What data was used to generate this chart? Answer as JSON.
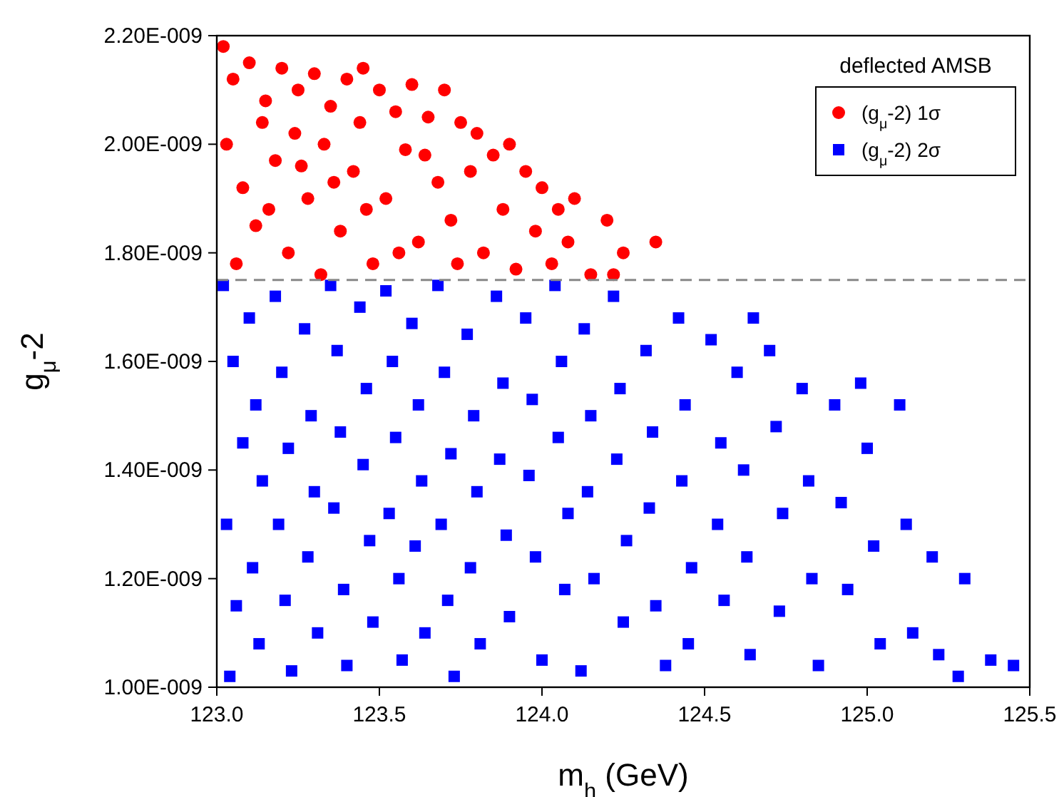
{
  "chart_data": {
    "type": "scatter",
    "xlabel": "m$_{h}$ (GeV)",
    "ylabel": "g$_{μ}$-2",
    "legend_title": "deflected AMSB",
    "xlim": [
      123.0,
      125.5
    ],
    "xticks": [
      {
        "value": 123.0,
        "label": "123.0"
      },
      {
        "value": 123.5,
        "label": "123.5"
      },
      {
        "value": 124.0,
        "label": "124.0"
      },
      {
        "value": 124.5,
        "label": "124.5"
      },
      {
        "value": 125.0,
        "label": "125.0"
      },
      {
        "value": 125.5,
        "label": "125.5"
      }
    ],
    "ylim": [
      1e-09,
      2.2e-09
    ],
    "yticks": [
      {
        "value": 1e-09,
        "label": "1.00E-009"
      },
      {
        "value": 1.2e-09,
        "label": "1.20E-009"
      },
      {
        "value": 1.4e-09,
        "label": "1.40E-009"
      },
      {
        "value": 1.6e-09,
        "label": "1.60E-009"
      },
      {
        "value": 1.8e-09,
        "label": "1.80E-009"
      },
      {
        "value": 2e-09,
        "label": "2.00E-009"
      },
      {
        "value": 2.2e-09,
        "label": "2.20E-009"
      }
    ],
    "legend": "top right",
    "grid": false,
    "ref_lines": [
      {
        "axis": "y",
        "value": 1.75e-09,
        "color": "#888888",
        "line_style": "dashed"
      }
    ],
    "series": [
      {
        "name": "(g$_{μ}$-2) 1σ",
        "color": "#ff0000",
        "marker": "circle",
        "x": [
          123.02,
          123.05,
          123.1,
          123.15,
          123.2,
          123.25,
          123.3,
          123.35,
          123.4,
          123.45,
          123.5,
          123.55,
          123.6,
          123.65,
          123.7,
          123.75,
          123.8,
          123.85,
          123.9,
          123.95,
          124.0,
          124.05,
          124.1,
          124.2,
          124.35,
          124.25,
          123.03,
          123.08,
          123.12,
          123.18,
          123.22,
          123.28,
          123.33,
          123.38,
          123.42,
          123.48,
          123.52,
          123.58,
          123.62,
          123.68,
          123.72,
          123.78,
          123.82,
          123.88,
          123.92,
          123.98,
          124.03,
          124.08,
          124.15,
          124.22,
          123.06,
          123.14,
          123.24,
          123.32,
          123.44,
          123.56,
          123.64,
          123.74,
          123.16,
          123.46,
          123.26,
          123.36
        ],
        "values": [
          2.18e-09,
          2.12e-09,
          2.15e-09,
          2.08e-09,
          2.14e-09,
          2.1e-09,
          2.13e-09,
          2.07e-09,
          2.12e-09,
          2.14e-09,
          2.1e-09,
          2.06e-09,
          2.11e-09,
          2.05e-09,
          2.1e-09,
          2.04e-09,
          2.02e-09,
          1.98e-09,
          2e-09,
          1.95e-09,
          1.92e-09,
          1.88e-09,
          1.9e-09,
          1.86e-09,
          1.82e-09,
          1.8e-09,
          2e-09,
          1.92e-09,
          1.85e-09,
          1.97e-09,
          1.8e-09,
          1.9e-09,
          2e-09,
          1.84e-09,
          1.95e-09,
          1.78e-09,
          1.9e-09,
          1.99e-09,
          1.82e-09,
          1.93e-09,
          1.86e-09,
          1.95e-09,
          1.8e-09,
          1.88e-09,
          1.77e-09,
          1.84e-09,
          1.78e-09,
          1.82e-09,
          1.76e-09,
          1.76e-09,
          1.78e-09,
          2.04e-09,
          2.02e-09,
          1.76e-09,
          2.04e-09,
          1.8e-09,
          1.98e-09,
          1.78e-09,
          1.88e-09,
          1.88e-09,
          1.96e-09,
          1.93e-09
        ]
      },
      {
        "name": "(g$_{μ}$-2) 2σ",
        "color": "#0000ff",
        "marker": "square",
        "x": [
          123.02,
          123.05,
          123.08,
          123.03,
          123.06,
          123.04,
          123.1,
          123.12,
          123.14,
          123.11,
          123.13,
          123.18,
          123.2,
          123.22,
          123.19,
          123.21,
          123.23,
          123.27,
          123.29,
          123.3,
          123.28,
          123.31,
          123.35,
          123.37,
          123.38,
          123.36,
          123.39,
          123.4,
          123.44,
          123.46,
          123.45,
          123.47,
          123.48,
          123.52,
          123.54,
          123.55,
          123.53,
          123.56,
          123.57,
          123.6,
          123.62,
          123.63,
          123.61,
          123.64,
          123.68,
          123.7,
          123.72,
          123.69,
          123.71,
          123.73,
          123.77,
          123.79,
          123.8,
          123.78,
          123.81,
          123.86,
          123.88,
          123.87,
          123.89,
          123.9,
          123.95,
          123.97,
          123.96,
          123.98,
          124.0,
          124.04,
          124.06,
          124.05,
          124.08,
          124.07,
          124.13,
          124.15,
          124.14,
          124.16,
          124.12,
          124.22,
          124.24,
          124.23,
          124.26,
          124.25,
          124.32,
          124.34,
          124.33,
          124.35,
          124.38,
          124.42,
          124.44,
          124.43,
          124.46,
          124.45,
          124.52,
          124.55,
          124.54,
          124.56,
          124.6,
          124.62,
          124.63,
          124.64,
          124.7,
          124.72,
          124.74,
          124.73,
          124.8,
          124.82,
          124.83,
          124.85,
          124.9,
          124.92,
          124.94,
          125.0,
          125.02,
          125.04,
          125.1,
          125.12,
          125.14,
          125.2,
          125.22,
          125.3,
          125.28,
          125.38,
          125.45,
          124.98,
          124.65
        ],
        "values": [
          1.74e-09,
          1.6e-09,
          1.45e-09,
          1.3e-09,
          1.15e-09,
          1.02e-09,
          1.68e-09,
          1.52e-09,
          1.38e-09,
          1.22e-09,
          1.08e-09,
          1.72e-09,
          1.58e-09,
          1.44e-09,
          1.3e-09,
          1.16e-09,
          1.03e-09,
          1.66e-09,
          1.5e-09,
          1.36e-09,
          1.24e-09,
          1.1e-09,
          1.74e-09,
          1.62e-09,
          1.47e-09,
          1.33e-09,
          1.18e-09,
          1.04e-09,
          1.7e-09,
          1.55e-09,
          1.41e-09,
          1.27e-09,
          1.12e-09,
          1.73e-09,
          1.6e-09,
          1.46e-09,
          1.32e-09,
          1.2e-09,
          1.05e-09,
          1.67e-09,
          1.52e-09,
          1.38e-09,
          1.26e-09,
          1.1e-09,
          1.74e-09,
          1.58e-09,
          1.43e-09,
          1.3e-09,
          1.16e-09,
          1.02e-09,
          1.65e-09,
          1.5e-09,
          1.36e-09,
          1.22e-09,
          1.08e-09,
          1.72e-09,
          1.56e-09,
          1.42e-09,
          1.28e-09,
          1.13e-09,
          1.68e-09,
          1.53e-09,
          1.39e-09,
          1.24e-09,
          1.05e-09,
          1.74e-09,
          1.6e-09,
          1.46e-09,
          1.32e-09,
          1.18e-09,
          1.66e-09,
          1.5e-09,
          1.36e-09,
          1.2e-09,
          1.03e-09,
          1.72e-09,
          1.55e-09,
          1.42e-09,
          1.27e-09,
          1.12e-09,
          1.62e-09,
          1.47e-09,
          1.33e-09,
          1.15e-09,
          1.04e-09,
          1.68e-09,
          1.52e-09,
          1.38e-09,
          1.22e-09,
          1.08e-09,
          1.64e-09,
          1.45e-09,
          1.3e-09,
          1.16e-09,
          1.58e-09,
          1.4e-09,
          1.24e-09,
          1.06e-09,
          1.62e-09,
          1.48e-09,
          1.32e-09,
          1.14e-09,
          1.55e-09,
          1.38e-09,
          1.2e-09,
          1.04e-09,
          1.52e-09,
          1.34e-09,
          1.18e-09,
          1.44e-09,
          1.26e-09,
          1.08e-09,
          1.52e-09,
          1.3e-09,
          1.1e-09,
          1.24e-09,
          1.06e-09,
          1.2e-09,
          1.02e-09,
          1.05e-09,
          1.04e-09,
          1.56e-09,
          1.68e-09
        ]
      }
    ]
  }
}
